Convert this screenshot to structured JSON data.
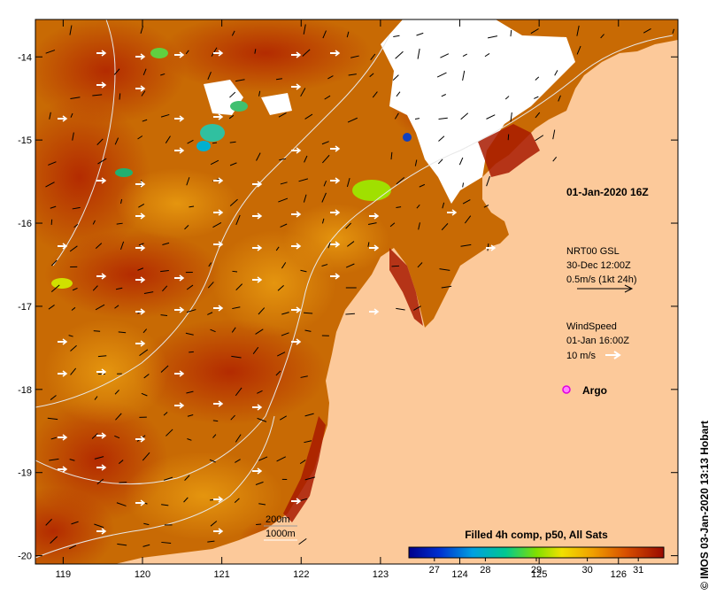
{
  "map": {
    "x_ticks": [
      "119",
      "120",
      "121",
      "122",
      "123",
      "124",
      "125",
      "126"
    ],
    "y_ticks": [
      "-14",
      "-15",
      "-16",
      "-17",
      "-18",
      "-19",
      "-20"
    ],
    "xlim": [
      118.65,
      126.75
    ],
    "ylim": [
      -20.1,
      -13.55
    ],
    "timestamp": "01-Jan-2020 16Z",
    "current_legend": {
      "line1": "NRT00 GSL",
      "line2": "30-Dec 12:00Z",
      "line3": "0.5m/s (1kt 24h)"
    },
    "wind_legend": {
      "line1": "WindSpeed",
      "line2": "01-Jan 16:00Z",
      "line3": "10 m/s"
    },
    "argo_label": "Argo",
    "depth_legend": {
      "contour1": "200m",
      "contour2": "1000m"
    },
    "colorbar": {
      "title": "Filled 4h comp, p50, All Sats",
      "ticks": [
        "27",
        "28",
        "29",
        "30",
        "31"
      ],
      "range": [
        26.5,
        31.5
      ],
      "tick_values": [
        27,
        28,
        29,
        30,
        31
      ]
    },
    "copyright": "© IMOS 03-Jan-2020 13:13 Hobart",
    "colors": {
      "land": "#fcc99a",
      "sst_warm": "#a81a00",
      "sst_orange": "#e08800",
      "sst_mid": "#c45a00",
      "cloud": "#ffffff",
      "argo": "#e000e0"
    }
  }
}
